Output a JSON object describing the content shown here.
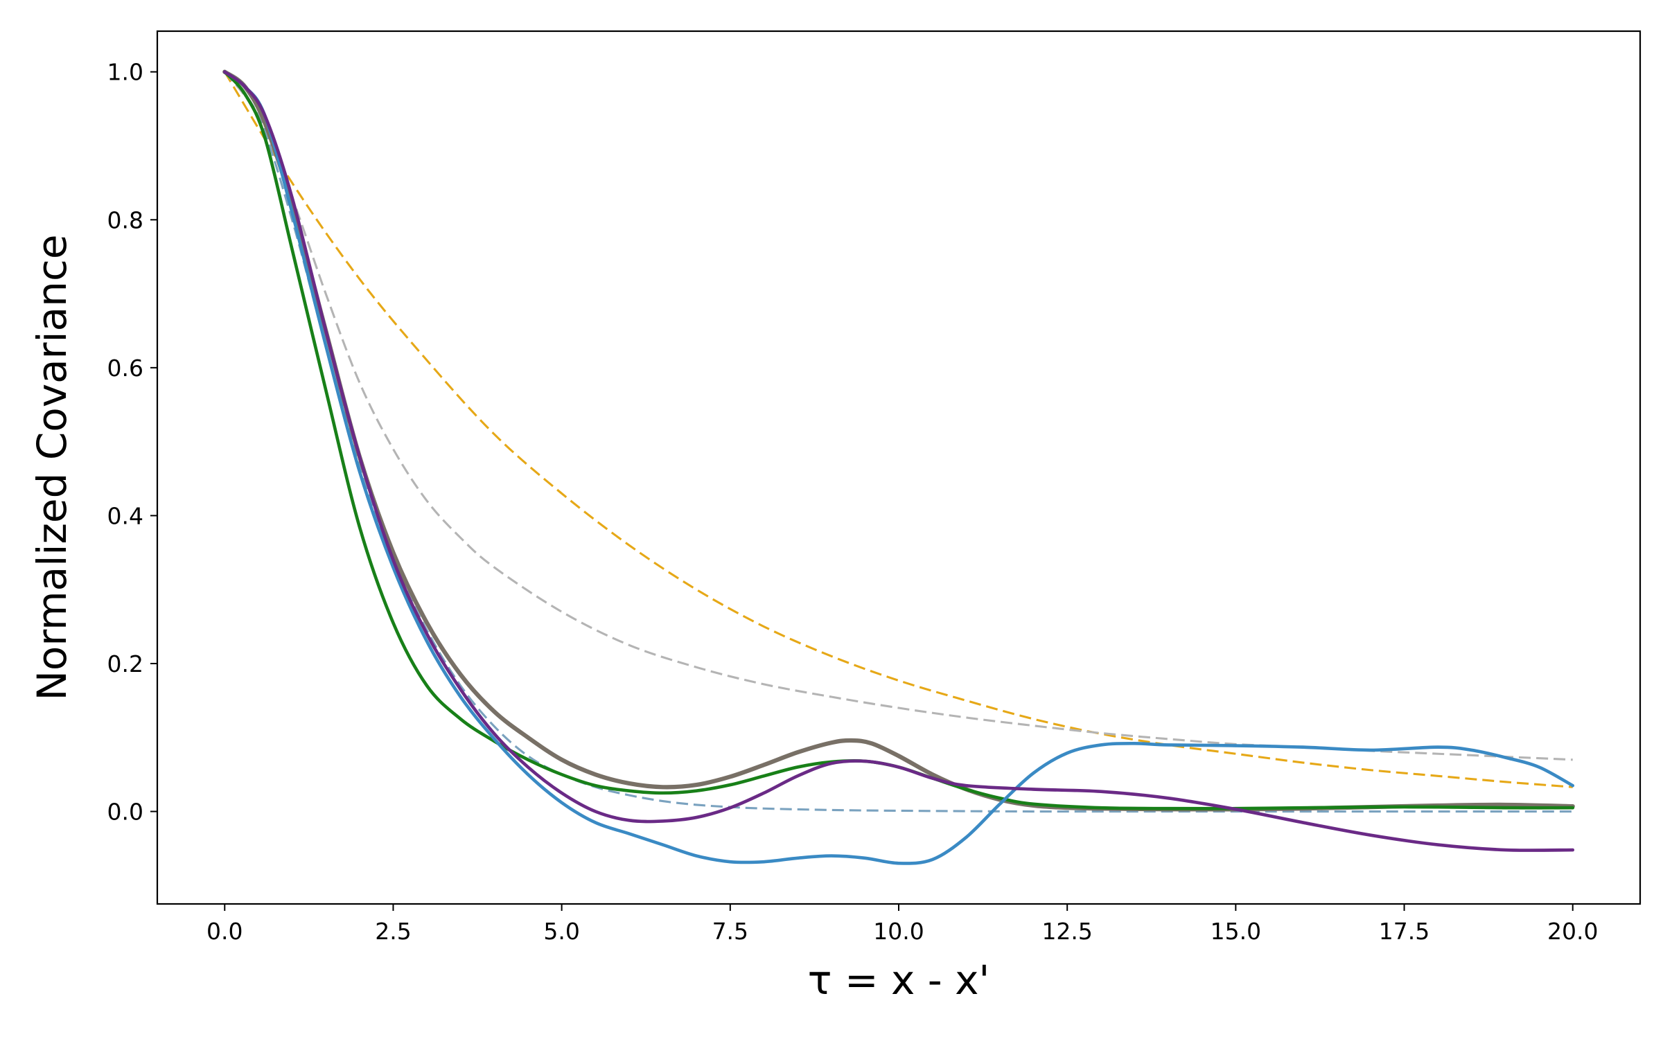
{
  "chart_data": {
    "type": "line",
    "title": "",
    "xlabel": "τ = x - x'",
    "ylabel": "Normalized Covariance",
    "xlim": [
      -1.0,
      21.0
    ],
    "ylim": [
      -0.125,
      1.055
    ],
    "xticks": [
      0.0,
      2.5,
      5.0,
      7.5,
      10.0,
      12.5,
      15.0,
      17.5,
      20.0
    ],
    "xtick_labels": [
      "0.0",
      "2.5",
      "5.0",
      "7.5",
      "10.0",
      "12.5",
      "15.0",
      "17.5",
      "20.0"
    ],
    "yticks": [
      0.0,
      0.2,
      0.4,
      0.6,
      0.8,
      1.0
    ],
    "ytick_labels": [
      "0.0",
      "0.2",
      "0.4",
      "0.6",
      "0.8",
      "1.0"
    ],
    "grid": false,
    "legend": "none",
    "series": [
      {
        "color": "#e6a817",
        "style": "dashed",
        "width": 2,
        "x": [
          0,
          1,
          2,
          3,
          4,
          5,
          6,
          7,
          8,
          9,
          10,
          11,
          12,
          13,
          14,
          15,
          16,
          17,
          18,
          19,
          20
        ],
        "y": [
          1.0,
          0.85,
          0.72,
          0.61,
          0.51,
          0.43,
          0.36,
          0.3,
          0.25,
          0.21,
          0.177,
          0.15,
          0.125,
          0.105,
          0.09,
          0.078,
          0.066,
          0.056,
          0.048,
          0.04,
          0.033
        ]
      },
      {
        "color": "#b4b4b4",
        "style": "dashed",
        "width": 2,
        "x": [
          0,
          0.5,
          1,
          1.5,
          2,
          2.5,
          3,
          3.5,
          4,
          5,
          6,
          7,
          8,
          9,
          10,
          11,
          12,
          13,
          14,
          15,
          16,
          17,
          18,
          19,
          20
        ],
        "y": [
          1.0,
          0.94,
          0.83,
          0.7,
          0.58,
          0.49,
          0.42,
          0.37,
          0.33,
          0.27,
          0.225,
          0.195,
          0.172,
          0.155,
          0.14,
          0.127,
          0.116,
          0.106,
          0.098,
          0.091,
          0.087,
          0.082,
          0.078,
          0.074,
          0.07
        ]
      },
      {
        "color": "#7aa2bf",
        "style": "dashed",
        "width": 2,
        "x": [
          0,
          0.5,
          1,
          1.5,
          2,
          2.5,
          3,
          3.5,
          4,
          4.5,
          5,
          5.5,
          6,
          6.5,
          7,
          7.5,
          8,
          9,
          10,
          12,
          14,
          16,
          18,
          20
        ],
        "y": [
          1.0,
          0.94,
          0.8,
          0.63,
          0.47,
          0.34,
          0.245,
          0.17,
          0.115,
          0.075,
          0.05,
          0.033,
          0.022,
          0.014,
          0.009,
          0.006,
          0.004,
          0.002,
          0.001,
          0.0,
          0.0,
          0.0,
          0.0,
          0.0
        ]
      },
      {
        "color": "#787066",
        "style": "solid",
        "width": 4,
        "x": [
          0,
          0.3,
          0.6,
          1,
          1.5,
          2,
          2.5,
          3,
          3.5,
          4,
          4.5,
          5,
          5.5,
          6,
          6.5,
          7,
          7.5,
          8,
          8.5,
          9,
          9.3,
          9.6,
          10,
          10.5,
          11,
          11.5,
          12,
          12.5,
          13,
          14,
          15,
          16,
          17,
          18,
          19,
          20
        ],
        "y": [
          1.0,
          0.98,
          0.93,
          0.82,
          0.65,
          0.48,
          0.35,
          0.255,
          0.185,
          0.135,
          0.1,
          0.07,
          0.05,
          0.038,
          0.033,
          0.036,
          0.047,
          0.063,
          0.08,
          0.093,
          0.096,
          0.092,
          0.075,
          0.05,
          0.03,
          0.016,
          0.008,
          0.005,
          0.004,
          0.003,
          0.003,
          0.004,
          0.006,
          0.008,
          0.009,
          0.007
        ]
      },
      {
        "color": "#188018",
        "style": "solid",
        "width": 3,
        "x": [
          0,
          0.3,
          0.6,
          1,
          1.5,
          2,
          2.5,
          3,
          3.5,
          4,
          4.5,
          5,
          5.5,
          6,
          6.5,
          7,
          7.5,
          8,
          8.5,
          9,
          9.5,
          10,
          10.5,
          11,
          11.5,
          12,
          13,
          14,
          15,
          16,
          17,
          18,
          19,
          20
        ],
        "y": [
          1.0,
          0.97,
          0.91,
          0.76,
          0.57,
          0.385,
          0.255,
          0.17,
          0.125,
          0.095,
          0.07,
          0.05,
          0.035,
          0.028,
          0.025,
          0.028,
          0.036,
          0.048,
          0.06,
          0.067,
          0.068,
          0.06,
          0.045,
          0.03,
          0.018,
          0.01,
          0.005,
          0.004,
          0.004,
          0.005,
          0.006,
          0.006,
          0.005,
          0.005
        ]
      },
      {
        "color": "#3a8ac4",
        "style": "solid",
        "width": 3,
        "x": [
          0,
          0.3,
          0.6,
          1,
          1.5,
          2,
          2.5,
          3,
          3.5,
          4,
          4.5,
          5,
          5.5,
          6,
          6.5,
          7,
          7.5,
          8,
          8.5,
          9,
          9.5,
          10,
          10.5,
          11,
          11.5,
          12,
          12.5,
          13,
          13.5,
          14,
          15,
          16,
          17,
          18,
          18.5,
          19,
          19.5,
          20
        ],
        "y": [
          1.0,
          0.98,
          0.94,
          0.81,
          0.63,
          0.46,
          0.33,
          0.23,
          0.155,
          0.098,
          0.05,
          0.012,
          -0.015,
          -0.03,
          -0.045,
          -0.06,
          -0.068,
          -0.068,
          -0.063,
          -0.06,
          -0.063,
          -0.07,
          -0.065,
          -0.035,
          0.01,
          0.052,
          0.079,
          0.09,
          0.092,
          0.09,
          0.089,
          0.087,
          0.083,
          0.087,
          0.083,
          0.073,
          0.06,
          0.035
        ]
      },
      {
        "color": "#6a2a86",
        "style": "solid",
        "width": 3,
        "x": [
          0,
          0.3,
          0.6,
          1,
          1.5,
          2,
          2.5,
          3,
          3.5,
          4,
          4.5,
          5,
          5.5,
          6,
          6.5,
          7,
          7.5,
          8,
          8.5,
          9,
          9.5,
          10,
          10.5,
          11,
          12,
          13,
          14,
          15,
          16,
          17,
          18,
          19,
          20
        ],
        "y": [
          1.0,
          0.98,
          0.94,
          0.83,
          0.65,
          0.48,
          0.34,
          0.24,
          0.165,
          0.105,
          0.06,
          0.025,
          0.0,
          -0.012,
          -0.013,
          -0.008,
          0.005,
          0.025,
          0.048,
          0.065,
          0.068,
          0.06,
          0.045,
          0.035,
          0.03,
          0.027,
          0.018,
          0.003,
          -0.015,
          -0.032,
          -0.045,
          -0.052,
          -0.052
        ]
      }
    ]
  }
}
